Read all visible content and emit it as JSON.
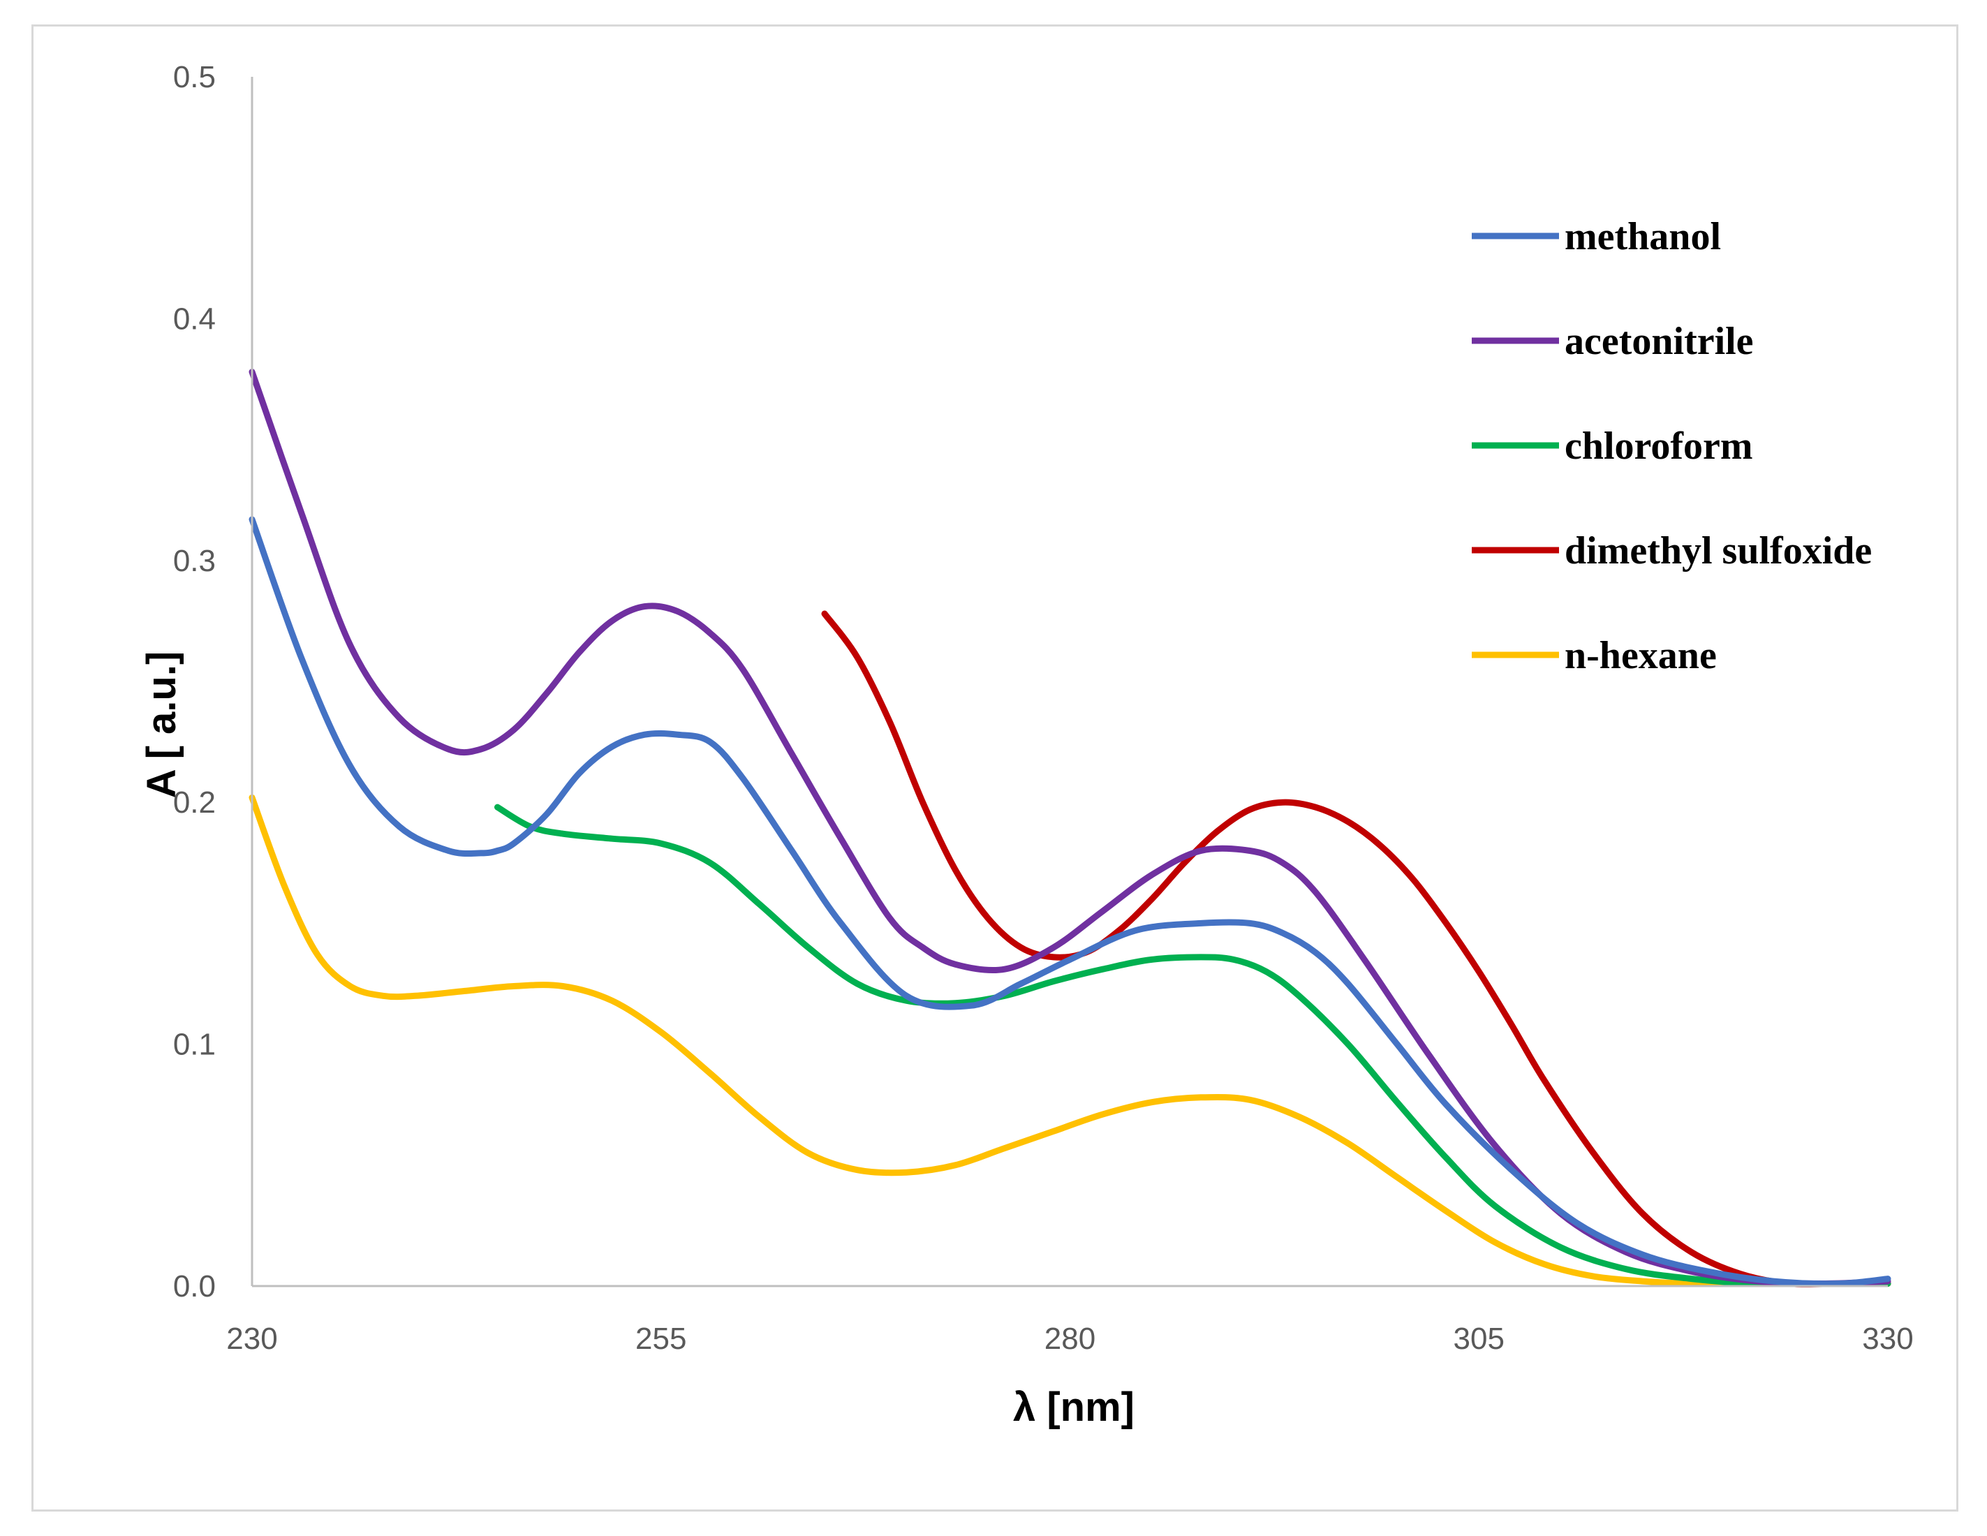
{
  "chart_data": {
    "type": "line",
    "title": "",
    "xlabel": "λ [nm]",
    "ylabel": "A [ a.u.]",
    "xlim": [
      230,
      330
    ],
    "ylim": [
      0,
      0.5
    ],
    "xticks": [
      230,
      255,
      280,
      305,
      330
    ],
    "xtick_labels": [
      "230",
      "255",
      "280",
      "305",
      "330"
    ],
    "yticks": [
      0,
      0.1,
      0.2,
      0.3,
      0.4,
      0.5
    ],
    "ytick_labels": [
      "0.0",
      "0.1",
      "0.2",
      "0.3",
      "0.4",
      "0.5"
    ],
    "grid": false,
    "legend_position": "right",
    "series": [
      {
        "name": "methanol",
        "color": "#4472c4",
        "x": [
          230,
          233,
          236,
          239,
          242,
          244,
          245,
          246,
          248,
          250,
          252,
          254,
          256,
          258,
          260,
          263,
          266,
          270,
          274,
          277,
          280,
          284,
          288,
          291,
          293,
          295,
          297,
          300,
          303,
          307,
          311,
          315,
          319,
          323,
          327,
          330
        ],
        "y": [
          0.317,
          0.26,
          0.215,
          0.19,
          0.18,
          0.179,
          0.18,
          0.183,
          0.195,
          0.212,
          0.223,
          0.228,
          0.228,
          0.225,
          0.21,
          0.18,
          0.15,
          0.12,
          0.116,
          0.125,
          0.135,
          0.147,
          0.15,
          0.15,
          0.146,
          0.138,
          0.125,
          0.1,
          0.075,
          0.048,
          0.026,
          0.013,
          0.006,
          0.002,
          0.001,
          0.003
        ]
      },
      {
        "name": "acetonitrile",
        "color": "#7030a0",
        "x": [
          230,
          233,
          236,
          239,
          242,
          244,
          246,
          248,
          250,
          252,
          254,
          256,
          258,
          260,
          263,
          266,
          269,
          271,
          273,
          276,
          279,
          282,
          285,
          288,
          291,
          293,
          295,
          298,
          302,
          306,
          310,
          314,
          318,
          322,
          326,
          330
        ],
        "y": [
          0.378,
          0.32,
          0.265,
          0.235,
          0.222,
          0.222,
          0.23,
          0.245,
          0.262,
          0.275,
          0.281,
          0.279,
          0.27,
          0.255,
          0.22,
          0.185,
          0.152,
          0.14,
          0.133,
          0.131,
          0.14,
          0.155,
          0.17,
          0.18,
          0.18,
          0.175,
          0.163,
          0.135,
          0.095,
          0.058,
          0.03,
          0.014,
          0.006,
          0.002,
          0.001,
          0.002
        ]
      },
      {
        "name": "chloroform",
        "color": "#00b050",
        "x": [
          245,
          247,
          249,
          252,
          255,
          258,
          261,
          264,
          267,
          270,
          273,
          276,
          279,
          282,
          285,
          288,
          290,
          292,
          294,
          297,
          300,
          303,
          306,
          310,
          314,
          318,
          322,
          326,
          330
        ],
        "y": [
          0.198,
          0.19,
          0.187,
          0.185,
          0.183,
          0.175,
          0.158,
          0.14,
          0.125,
          0.118,
          0.117,
          0.12,
          0.126,
          0.131,
          0.135,
          0.136,
          0.135,
          0.13,
          0.12,
          0.1,
          0.076,
          0.053,
          0.033,
          0.016,
          0.007,
          0.003,
          0.001,
          0.001,
          0.001
        ]
      },
      {
        "name": "dimethyl sulfoxide",
        "color": "#c00000",
        "x": [
          265,
          267,
          269,
          271,
          273,
          275,
          277,
          279,
          281,
          283,
          285,
          287,
          289,
          291,
          293,
          295,
          297,
          299,
          301,
          303,
          305,
          307,
          309,
          312,
          315,
          318,
          321,
          324,
          327,
          330
        ],
        "y": [
          0.278,
          0.26,
          0.233,
          0.2,
          0.172,
          0.152,
          0.14,
          0.136,
          0.138,
          0.147,
          0.16,
          0.175,
          0.188,
          0.197,
          0.2,
          0.198,
          0.192,
          0.182,
          0.168,
          0.15,
          0.13,
          0.108,
          0.085,
          0.055,
          0.03,
          0.014,
          0.005,
          0.001,
          0.001,
          0.001
        ]
      },
      {
        "name": "n-hexane",
        "color": "#ffc000",
        "x": [
          230,
          232,
          234,
          236,
          238,
          240,
          243,
          246,
          249,
          252,
          255,
          258,
          261,
          264,
          267,
          270,
          273,
          276,
          279,
          282,
          285,
          288,
          291,
          294,
          297,
          300,
          303,
          306,
          309,
          312,
          315,
          318,
          321,
          325,
          330
        ],
        "y": [
          0.202,
          0.165,
          0.137,
          0.124,
          0.12,
          0.12,
          0.122,
          0.124,
          0.124,
          0.118,
          0.105,
          0.088,
          0.07,
          0.055,
          0.048,
          0.047,
          0.05,
          0.057,
          0.064,
          0.071,
          0.076,
          0.078,
          0.077,
          0.07,
          0.059,
          0.045,
          0.031,
          0.018,
          0.009,
          0.004,
          0.002,
          0.001,
          0.001,
          0.001,
          0.001
        ]
      }
    ]
  }
}
